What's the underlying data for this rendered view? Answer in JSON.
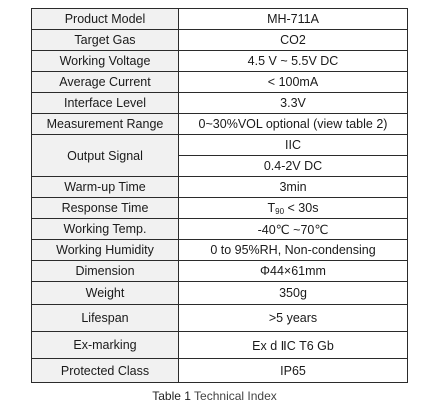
{
  "table": {
    "rows": [
      {
        "label": "Product Model",
        "values": [
          "MH-711A"
        ]
      },
      {
        "label": "Target Gas",
        "values": [
          "CO2"
        ]
      },
      {
        "label": "Working Voltage",
        "values": [
          "4.5 V ~ 5.5V DC"
        ]
      },
      {
        "label": "Average Current",
        "values": [
          "< 100mA"
        ]
      },
      {
        "label": "Interface Level",
        "values": [
          "3.3V"
        ]
      },
      {
        "label": "Measurement Range",
        "values": [
          "0~30%VOL optional (view table 2)"
        ]
      },
      {
        "label": "Output Signal",
        "values": [
          "IIC",
          "0.4-2V DC"
        ]
      },
      {
        "label": "Warm-up Time",
        "values": [
          "3min"
        ]
      },
      {
        "label": "Response Time",
        "values": [
          "T90 < 30s"
        ]
      },
      {
        "label": "Working Temp.",
        "values": [
          "-40℃ ~70℃"
        ]
      },
      {
        "label": "Working Humidity",
        "values": [
          "0 to 95%RH, Non-condensing"
        ]
      },
      {
        "label": "Dimension",
        "values": [
          "Φ44×61mm"
        ]
      },
      {
        "label": "Weight",
        "values": [
          "350g"
        ]
      },
      {
        "label": "Lifespan",
        "values": [
          ">5 years"
        ]
      },
      {
        "label": "Ex-marking",
        "values": [
          "Ex d ⅡC T6 Gb"
        ]
      },
      {
        "label": "Protected Class",
        "values": [
          "IP65"
        ]
      }
    ]
  },
  "caption": {
    "prefix": "Table 1",
    "text": "Technical Index"
  }
}
